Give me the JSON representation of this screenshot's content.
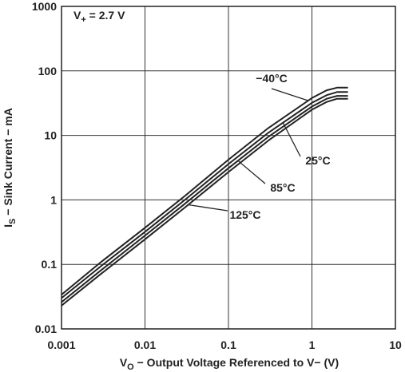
{
  "chart_data": {
    "type": "line",
    "title": "",
    "xlabel": {
      "pre": "V",
      "sub": "O",
      "post": " − Output Voltage Referenced to V− (V)"
    },
    "ylabel": {
      "pre": "I",
      "sub": "S",
      "post": " − Sink Current − mA"
    },
    "xscale": "log",
    "yscale": "log",
    "xlim": [
      0.001,
      10
    ],
    "ylim": [
      0.01,
      1000
    ],
    "grid": true,
    "xticks": [
      "0.001",
      "0.01",
      "0.1",
      "1",
      "10"
    ],
    "yticks": [
      "0.01",
      "0.1",
      "1",
      "10",
      "100",
      "1000"
    ],
    "annotation": {
      "pre": "V",
      "sub": "+",
      "post": " = 2.7 V"
    },
    "series": [
      {
        "name": "−40°C",
        "x": [
          0.001,
          0.003,
          0.01,
          0.03,
          0.1,
          0.3,
          1,
          1.5,
          2,
          2.7
        ],
        "y": [
          0.034,
          0.11,
          0.37,
          1.15,
          4.2,
          13,
          38,
          50,
          55,
          55
        ]
      },
      {
        "name": "25°C",
        "x": [
          0.001,
          0.003,
          0.01,
          0.03,
          0.1,
          0.3,
          1,
          1.5,
          2,
          2.7
        ],
        "y": [
          0.03,
          0.095,
          0.32,
          1.0,
          3.6,
          11,
          32,
          42,
          47,
          47
        ]
      },
      {
        "name": "85°C",
        "x": [
          0.001,
          0.003,
          0.01,
          0.03,
          0.1,
          0.3,
          1,
          1.5,
          2,
          2.7
        ],
        "y": [
          0.026,
          0.082,
          0.28,
          0.87,
          3.1,
          9.5,
          28,
          37,
          41,
          41
        ]
      },
      {
        "name": "125°C",
        "x": [
          0.001,
          0.003,
          0.01,
          0.03,
          0.1,
          0.3,
          1,
          1.5,
          2,
          2.7
        ],
        "y": [
          0.023,
          0.072,
          0.245,
          0.76,
          2.7,
          8.3,
          25,
          33,
          37,
          37
        ]
      }
    ]
  }
}
